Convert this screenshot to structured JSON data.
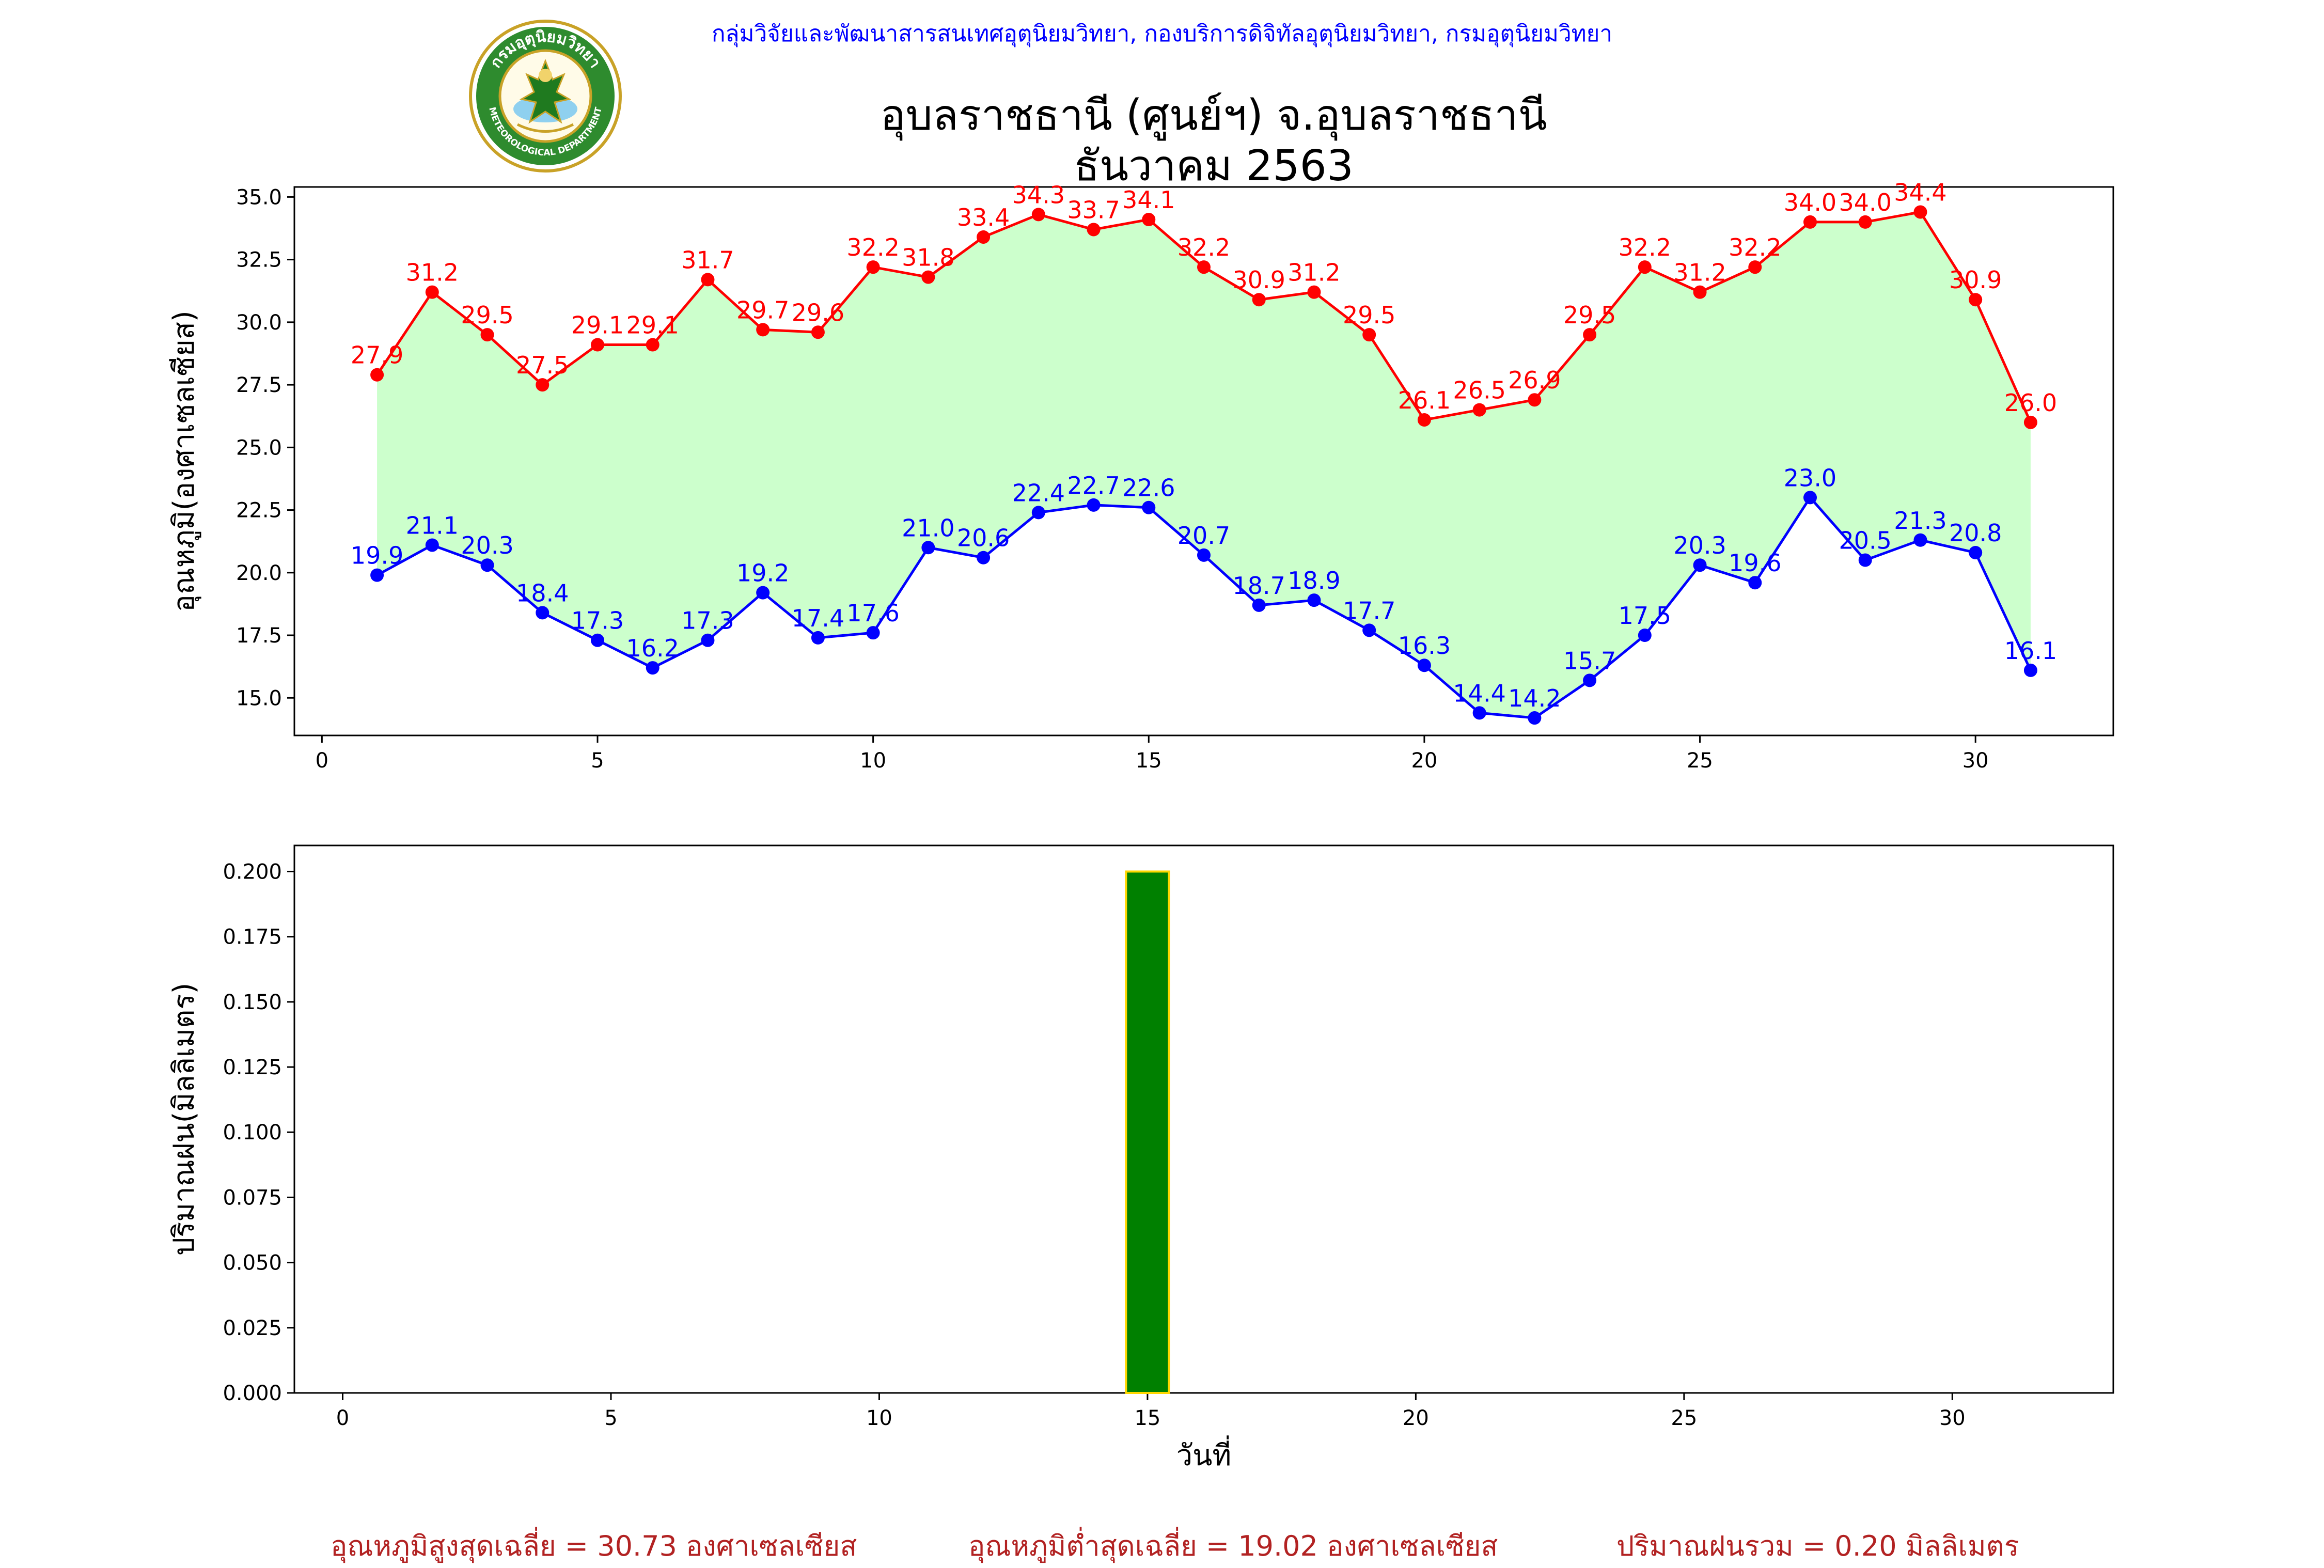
{
  "header": {
    "credit": "กลุ่มวิจัยและพัฒนาสารสนเทศอุตุนิยมวิทยา, กองบริการดิจิทัลอุตุนิยมวิทยา, กรมอุตุนิยมวิทยา",
    "title_line1": "อุบลราชธานี (ศูนย์ฯ) จ.อุบลราชธานี",
    "title_line2": "ธันวาคม 2563",
    "logo": {
      "top_text": "กรมอุตุนิยมวิทยา",
      "bottom_text": "METEOROLOGICAL DEPARTMENT",
      "ring_color": "#2e8b2e",
      "figure_color": "#1f7a1f"
    }
  },
  "chart_data": [
    {
      "type": "line",
      "ylabel": "อุณหภูมิ(องศาเซลเซียส)",
      "xlabel": "",
      "xlim": [
        -0.5,
        32.5
      ],
      "ylim": [
        13.5,
        35.4
      ],
      "x_ticks": [
        0,
        5,
        10,
        15,
        20,
        25,
        30
      ],
      "y_ticks": [
        15.0,
        17.5,
        20.0,
        22.5,
        25.0,
        27.5,
        30.0,
        32.5,
        35.0
      ],
      "x": [
        1,
        2,
        3,
        4,
        5,
        6,
        7,
        8,
        9,
        10,
        11,
        12,
        13,
        14,
        15,
        16,
        17,
        18,
        19,
        20,
        21,
        22,
        23,
        24,
        25,
        26,
        27,
        28,
        29,
        30,
        31
      ],
      "series": [
        {
          "key": "max",
          "color": "#ff0000",
          "values": [
            27.9,
            31.2,
            29.5,
            27.5,
            29.1,
            29.1,
            31.7,
            29.7,
            29.6,
            32.2,
            31.8,
            33.4,
            34.3,
            33.7,
            34.1,
            32.2,
            30.9,
            31.2,
            29.5,
            26.1,
            26.5,
            26.9,
            29.5,
            32.2,
            31.2,
            32.2,
            34.0,
            34.0,
            34.4,
            30.9,
            26.0
          ]
        },
        {
          "key": "min",
          "color": "#0000ff",
          "values": [
            19.9,
            21.1,
            20.3,
            18.4,
            17.3,
            16.2,
            17.3,
            19.2,
            17.4,
            17.6,
            21.0,
            20.6,
            22.4,
            22.7,
            22.6,
            20.7,
            18.7,
            18.9,
            17.7,
            16.3,
            14.4,
            14.2,
            15.7,
            17.5,
            20.3,
            19.6,
            23.0,
            20.5,
            21.3,
            20.8,
            16.1
          ]
        }
      ],
      "fill_color": "#ccffcc",
      "grid": false
    },
    {
      "type": "bar",
      "ylabel": "ปริมาณฝน(มิลลิเมตร)",
      "xlabel": "วันที่",
      "xlim": [
        -0.9,
        33.0
      ],
      "ylim": [
        0,
        0.21
      ],
      "x_ticks": [
        0,
        5,
        10,
        15,
        20,
        25,
        30
      ],
      "y_ticks": [
        0.0,
        0.025,
        0.05,
        0.075,
        0.1,
        0.125,
        0.15,
        0.175,
        0.2
      ],
      "x": [
        1,
        2,
        3,
        4,
        5,
        6,
        7,
        8,
        9,
        10,
        11,
        12,
        13,
        14,
        15,
        16,
        17,
        18,
        19,
        20,
        21,
        22,
        23,
        24,
        25,
        26,
        27,
        28,
        29,
        30,
        31
      ],
      "values": [
        0,
        0,
        0,
        0,
        0,
        0,
        0,
        0,
        0,
        0,
        0,
        0,
        0,
        0,
        0.2,
        0,
        0,
        0,
        0,
        0,
        0,
        0,
        0,
        0,
        0,
        0,
        0,
        0,
        0,
        0,
        0
      ],
      "bar_color": "#008000",
      "edge_color": "#ffd700",
      "grid": false
    }
  ],
  "summary": {
    "avg_max": "อุณหภูมิสูงสุดเฉลี่ย = 30.73 องศาเซลเซียส",
    "avg_min": "อุณหภูมิต่ำสุดเฉลี่ย = 19.02 องศาเซลเซียส",
    "total_rain": "ปริมาณฝนรวม = 0.20 มิลลิเมตร"
  }
}
